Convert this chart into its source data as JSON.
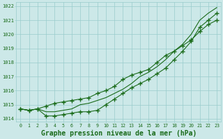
{
  "title": "Graphe pression niveau de la mer (hPa)",
  "x": [
    0,
    1,
    2,
    3,
    4,
    5,
    6,
    7,
    8,
    9,
    10,
    11,
    12,
    13,
    14,
    15,
    16,
    17,
    18,
    19,
    20,
    21,
    22,
    23
  ],
  "line1": [
    1014.7,
    1014.6,
    1014.7,
    1014.5,
    1014.5,
    1014.6,
    1014.7,
    1015.0,
    1015.1,
    1015.3,
    1015.5,
    1015.8,
    1016.1,
    1016.5,
    1017.0,
    1017.3,
    1017.7,
    1018.2,
    1018.8,
    1019.3,
    1020.0,
    1021.0,
    1021.5,
    1021.9
  ],
  "line2": [
    1014.7,
    1014.6,
    1014.7,
    1014.2,
    1014.2,
    1014.3,
    1014.4,
    1014.5,
    1014.5,
    1014.6,
    1015.0,
    1015.4,
    1015.8,
    1016.2,
    1016.5,
    1016.8,
    1017.2,
    1017.6,
    1018.2,
    1018.8,
    1019.5,
    1020.5,
    1021.0,
    1021.5
  ],
  "line3": [
    1014.7,
    1014.6,
    1014.7,
    1014.9,
    1015.1,
    1015.2,
    1015.3,
    1015.4,
    1015.5,
    1015.8,
    1016.0,
    1016.3,
    1016.8,
    1017.1,
    1017.3,
    1017.5,
    1018.0,
    1018.5,
    1018.8,
    1019.2,
    1019.6,
    1020.2,
    1020.7,
    1021.0
  ],
  "ylim": [
    1013.8,
    1022.3
  ],
  "yticks": [
    1014,
    1015,
    1016,
    1017,
    1018,
    1019,
    1020,
    1021,
    1022
  ],
  "line_color": "#1a6b1a",
  "bg_color": "#cce8e8",
  "grid_color": "#99cccc",
  "title_color": "#1a6b1a",
  "title_fontsize": 7.0,
  "marker": "+",
  "marker_size": 4,
  "linewidth": 0.8
}
